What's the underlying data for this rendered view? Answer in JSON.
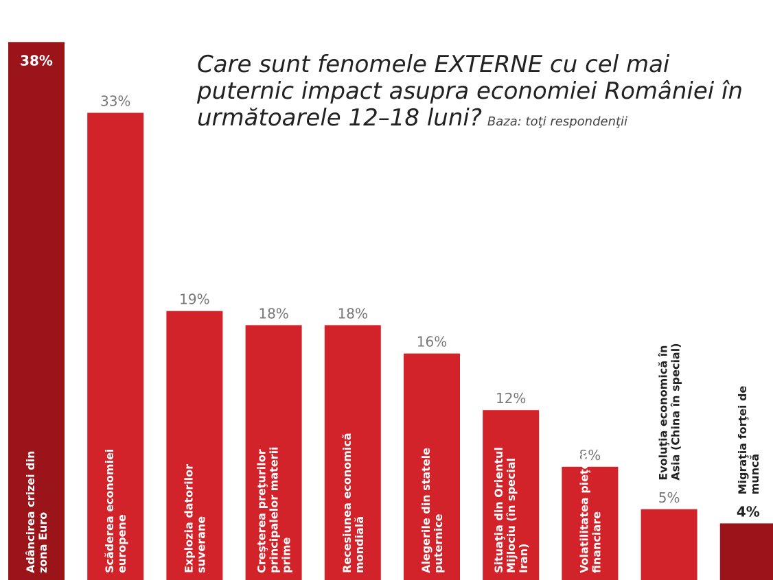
{
  "chart_data": {
    "type": "bar",
    "title": "Care sunt fenomele EXTERNE cu cel mai puternic impact asupra economiei României în următoarele 12–18 luni?",
    "subtitle": "Baza: toţi respondenţii",
    "categories": [
      "Adâncirea crizei din zona Euro",
      "Scăderea economiei europene",
      "Explozia datorilor suverane",
      "Creşterea preţurilor principalelor materii prime",
      "Recesiunea economică mondială",
      "Alegerile din statele puternice",
      "Situaţia din Orientul Mijlociu (în special Iran)",
      "Volatilitatea pieţelor financiare",
      "Evoluţia economică în Asia (China în special)",
      "Migraţia forţei de muncă"
    ],
    "values": [
      38,
      33,
      19,
      18,
      18,
      16,
      12,
      8,
      5,
      4
    ],
    "value_labels": [
      "38%",
      "33%",
      "19%",
      "18%",
      "18%",
      "16%",
      "12%",
      "8%",
      "5%",
      "4%"
    ],
    "colors": [
      "#9b1419",
      "#d2232a",
      "#d2232a",
      "#d2232a",
      "#d2232a",
      "#d2232a",
      "#d2232a",
      "#d2232a",
      "#d2232a",
      "#9b1419"
    ],
    "ylim": [
      0,
      40
    ]
  }
}
